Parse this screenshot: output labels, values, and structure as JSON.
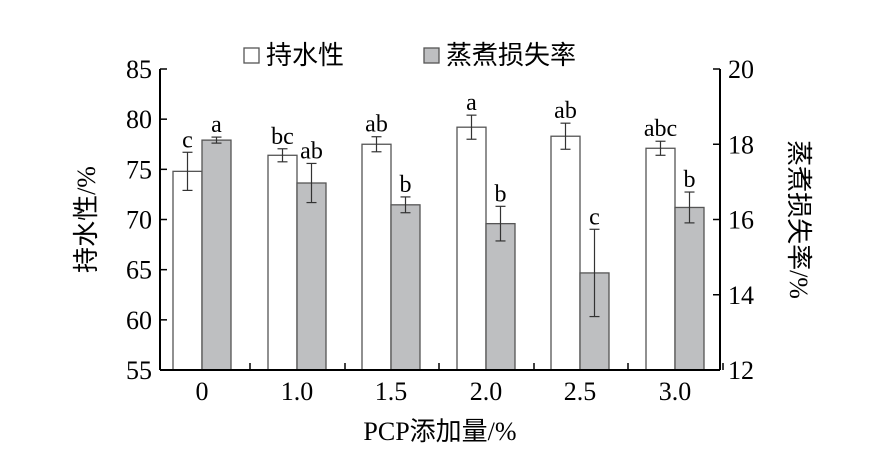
{
  "chart_data": {
    "type": "bar",
    "xlabel": "PCP添加量/%",
    "ylabel": "持水性/%",
    "y2label": "蒸煮损失率/%",
    "categories": [
      "0",
      "1.0",
      "1.5",
      "2.0",
      "2.5",
      "3.0"
    ],
    "ylim": [
      55,
      85
    ],
    "y2lim": [
      12,
      20
    ],
    "yticks": [
      55,
      60,
      65,
      70,
      75,
      80,
      85
    ],
    "y2ticks": [
      12,
      14,
      16,
      18,
      20
    ],
    "legend_position": "top",
    "series": [
      {
        "name": "持水性",
        "axis": "left",
        "color": "#ffffff",
        "values": [
          74.8,
          76.4,
          77.5,
          79.2,
          78.3,
          77.1
        ],
        "errors": [
          1.9,
          0.65,
          0.75,
          1.2,
          1.3,
          0.7
        ],
        "labels": [
          "c",
          "bc",
          "ab",
          "a",
          "ab",
          "abc"
        ]
      },
      {
        "name": "蒸煮损失率",
        "axis": "right",
        "color": "#bebfc1",
        "values": [
          18.11,
          16.97,
          16.39,
          15.89,
          14.58,
          16.32
        ],
        "errors": [
          0.08,
          0.52,
          0.21,
          0.46,
          1.16,
          0.41
        ],
        "labels": [
          "a",
          "ab",
          "b",
          "b",
          "c",
          "b"
        ]
      }
    ]
  }
}
